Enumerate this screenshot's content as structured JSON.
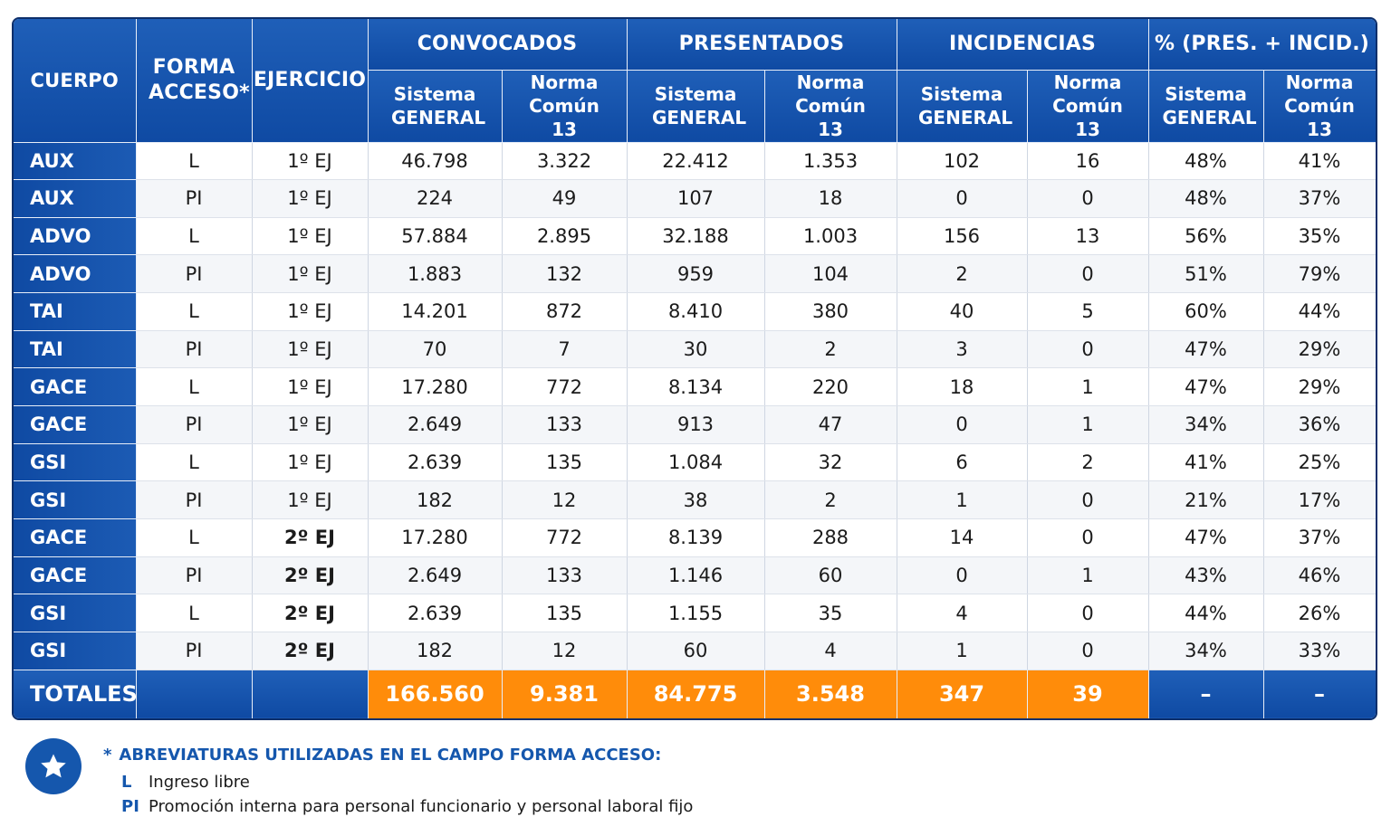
{
  "header": {
    "cuerpo": "CUERPO",
    "forma_acceso": "FORMA ACCESO*",
    "ejercicio": "EJERCICIO",
    "groups": [
      "CONVOCADOS",
      "PRESENTADOS",
      "INCIDENCIAS",
      "% (PRES. + INCID.)"
    ],
    "sub": [
      "Sistema GENERAL",
      "Norma Común 13",
      "Sistema GENERAL",
      "Norma Común 13",
      "Sistema GENERAL",
      "Norma Común 13",
      "Sistema GENERAL",
      "Norma Común 13"
    ]
  },
  "rows": [
    [
      "AUX",
      "L",
      "1º EJ",
      "46.798",
      "3.322",
      "22.412",
      "1.353",
      "102",
      "16",
      "48%",
      "41%"
    ],
    [
      "AUX",
      "PI",
      "1º EJ",
      "224",
      "49",
      "107",
      "18",
      "0",
      "0",
      "48%",
      "37%"
    ],
    [
      "ADVO",
      "L",
      "1º EJ",
      "57.884",
      "2.895",
      "32.188",
      "1.003",
      "156",
      "13",
      "56%",
      "35%"
    ],
    [
      "ADVO",
      "PI",
      "1º EJ",
      "1.883",
      "132",
      "959",
      "104",
      "2",
      "0",
      "51%",
      "79%"
    ],
    [
      "TAI",
      "L",
      "1º EJ",
      "14.201",
      "872",
      "8.410",
      "380",
      "40",
      "5",
      "60%",
      "44%"
    ],
    [
      "TAI",
      "PI",
      "1º EJ",
      "70",
      "7",
      "30",
      "2",
      "3",
      "0",
      "47%",
      "29%"
    ],
    [
      "GACE",
      "L",
      "1º EJ",
      "17.280",
      "772",
      "8.134",
      "220",
      "18",
      "1",
      "47%",
      "29%"
    ],
    [
      "GACE",
      "PI",
      "1º EJ",
      "2.649",
      "133",
      "913",
      "47",
      "0",
      "1",
      "34%",
      "36%"
    ],
    [
      "GSI",
      "L",
      "1º EJ",
      "2.639",
      "135",
      "1.084",
      "32",
      "6",
      "2",
      "41%",
      "25%"
    ],
    [
      "GSI",
      "PI",
      "1º EJ",
      "182",
      "12",
      "38",
      "2",
      "1",
      "0",
      "21%",
      "17%"
    ],
    [
      "GACE",
      "L",
      "2º EJ",
      "17.280",
      "772",
      "8.139",
      "288",
      "14",
      "0",
      "47%",
      "37%"
    ],
    [
      "GACE",
      "PI",
      "2º EJ",
      "2.649",
      "133",
      "1.146",
      "60",
      "0",
      "1",
      "43%",
      "46%"
    ],
    [
      "GSI",
      "L",
      "2º EJ",
      "2.639",
      "135",
      "1.155",
      "35",
      "4",
      "0",
      "44%",
      "26%"
    ],
    [
      "GSI",
      "PI",
      "2º EJ",
      "182",
      "12",
      "60",
      "4",
      "1",
      "0",
      "34%",
      "33%"
    ]
  ],
  "totals": {
    "label": "TOTALES",
    "values": [
      "166.560",
      "9.381",
      "84.775",
      "3.548",
      "347",
      "39",
      "–",
      "–"
    ]
  },
  "legend": {
    "icon": "star-icon",
    "asterisk": "*",
    "title": "ABREVIATURAS UTILIZADAS EN EL CAMPO FORMA ACCESO:",
    "items": [
      {
        "abbr": "L",
        "text": "Ingreso libre"
      },
      {
        "abbr": "PI",
        "text": "Promoción interna para personal funcionario y personal laboral fijo"
      }
    ]
  },
  "colors": {
    "header_blue": "#0f4aa3",
    "accent_orange": "#ff8c0a",
    "legend_blue": "#1557ad"
  }
}
